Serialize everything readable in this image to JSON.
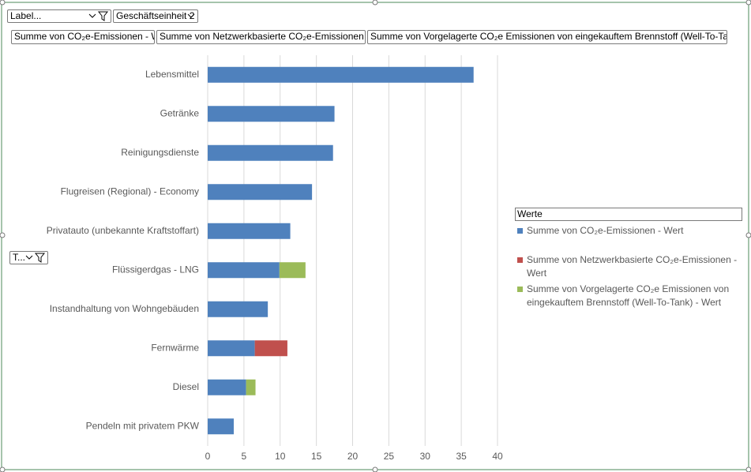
{
  "pivot_controls": {
    "report_filter": "Label...",
    "unit_filter": "Geschäftseinheit 2",
    "row_filter": "T..."
  },
  "chart_data": {
    "type": "stacked_bar_horizontal",
    "categories": [
      "Lebensmittel",
      "Getränke",
      "Reinigungsdienste",
      "Flugreisen (Regional) - Economy",
      "Privatauto (unbekannte Kraftstoffart)",
      "Flüssigerdgas - LNG",
      "Instandhaltung von Wohngebäuden",
      "Fernwärme",
      "Diesel",
      "Pendeln mit privatem PKW"
    ],
    "series": [
      {
        "name": "Summe von CO₂e-Emissionen - Wert",
        "button_label": "Summe von CO₂e-Emissionen - Wert",
        "color": "#4f81bd",
        "values": [
          36.7,
          17.5,
          17.3,
          14.4,
          11.4,
          9.9,
          8.3,
          6.5,
          5.3,
          3.6
        ]
      },
      {
        "name": "Summe von Netzwerkbasierte CO₂e-Emissionen - Wert",
        "button_label": "Summe von Netzwerkbasierte CO₂e-Emissionen - Wert",
        "color": "#c0504d",
        "values": [
          null,
          null,
          null,
          null,
          null,
          null,
          null,
          4.5,
          null,
          null
        ]
      },
      {
        "name": "Summe von Vorgelagerte CO₂e Emissionen von eingekauftem Brennstoff (Well-To-Tank) - Wert",
        "button_label": "Summe von Vorgelagerte CO₂e Emissionen von eingekauftem Brennstoff (Well-To-Tank) - Wert",
        "color": "#9bbb59",
        "values": [
          null,
          null,
          null,
          null,
          null,
          3.6,
          null,
          null,
          1.3,
          null
        ]
      }
    ],
    "xlim": [
      0,
      40
    ],
    "xticks": [
      0,
      5,
      10,
      15,
      20,
      25,
      30,
      35,
      40
    ],
    "grid": true,
    "legend_title": "Werte",
    "legend_position": "right"
  }
}
